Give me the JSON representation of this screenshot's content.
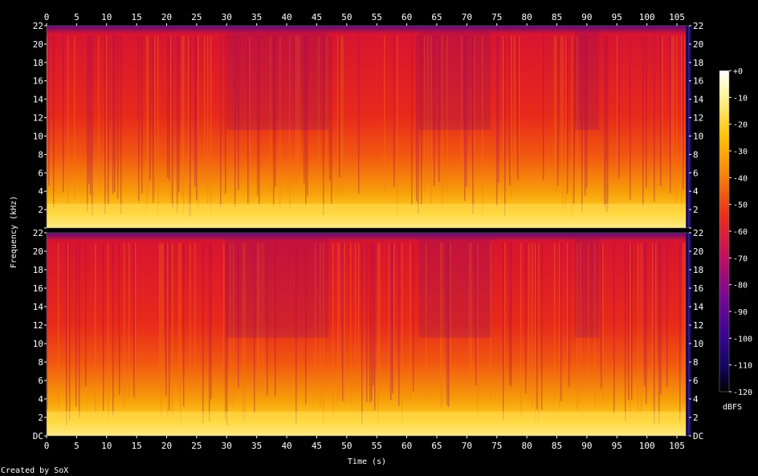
{
  "chart_data": {
    "type": "heatmap",
    "xlabel": "Time (s)",
    "ylabel": "Frequency (kHz)",
    "x_ticks": [
      0,
      5,
      10,
      15,
      20,
      25,
      30,
      35,
      40,
      45,
      50,
      55,
      60,
      65,
      70,
      75,
      80,
      85,
      90,
      95,
      100,
      105
    ],
    "xlim": [
      0,
      107
    ],
    "y_ticks": [
      "DC",
      "2",
      "4",
      "6",
      "8",
      "10",
      "12",
      "14",
      "16",
      "18",
      "20",
      "22"
    ],
    "ylim": [
      0,
      22
    ],
    "channels": 2,
    "colorbar": {
      "label": "dBFS",
      "ticks": [
        "+0",
        "-10",
        "-20",
        "-30",
        "-40",
        "-50",
        "-60",
        "-70",
        "-80",
        "-90",
        "-100",
        "-110",
        "-120"
      ],
      "range": [
        -120,
        0
      ]
    },
    "footer": "Created by SoX"
  }
}
